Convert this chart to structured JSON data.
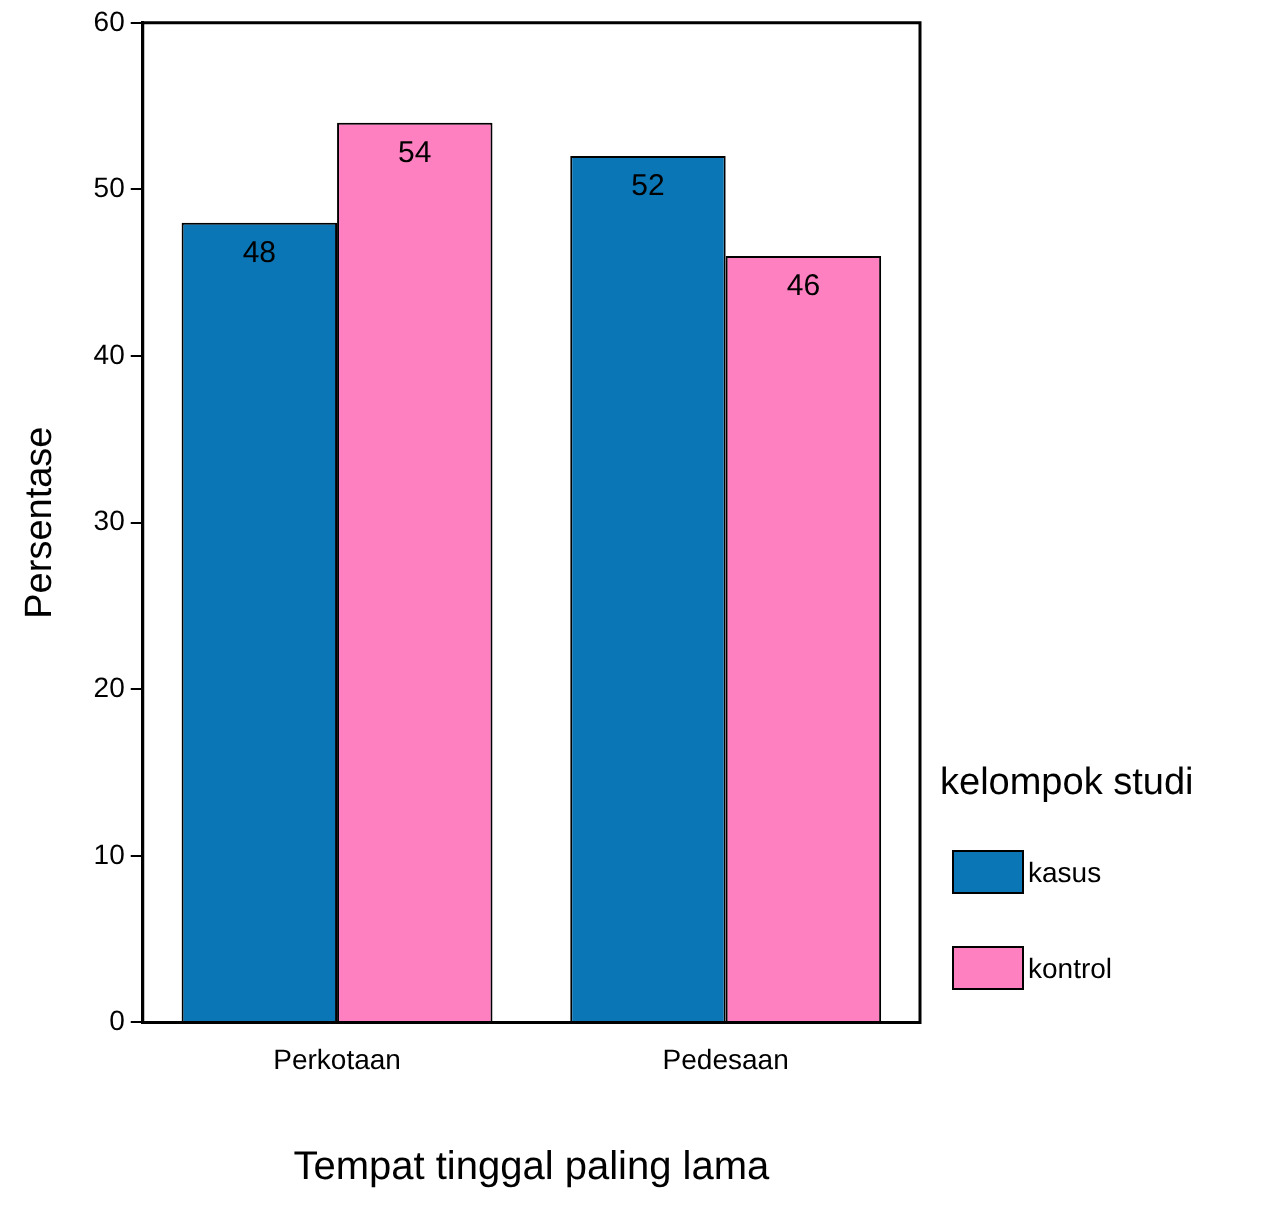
{
  "chart_data": {
    "type": "bar",
    "xlabel": "Tempat tinggal paling lama",
    "ylabel": "Persentase",
    "legend_title": "kelompok studi",
    "categories": [
      "Perkotaan",
      "Pedesaan"
    ],
    "series": [
      {
        "name": "kasus",
        "color": "#0a76b6",
        "values": [
          48,
          52
        ]
      },
      {
        "name": "kontrol",
        "color": "#ff80c0",
        "values": [
          54,
          46
        ]
      }
    ],
    "ylim": [
      0,
      60
    ],
    "yticks": [
      0,
      10,
      20,
      30,
      40,
      50,
      60
    ],
    "grid": false,
    "legend": "right",
    "data_labels": true
  }
}
